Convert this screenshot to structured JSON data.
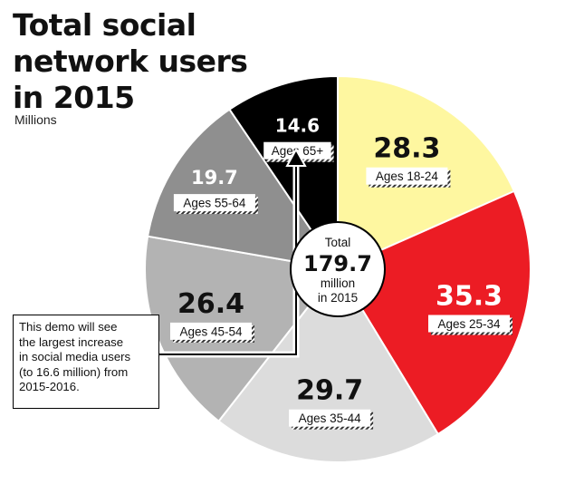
{
  "title_lines": [
    "Total social",
    "network users",
    "in 2015"
  ],
  "unit": "Millions",
  "center": {
    "label_top": "Total",
    "value": "179.7",
    "label_bottom_1": "million",
    "label_bottom_2": "in 2015"
  },
  "callout": {
    "lines": [
      "This demo will see",
      "the largest increase",
      "in social media users",
      "(to 16.6 million) from",
      "2015-2016."
    ]
  },
  "chart_data": {
    "type": "pie",
    "title": "Total social network users in 2015",
    "unit": "Millions",
    "total": 179.7,
    "slices": [
      {
        "label": "Ages 18-24",
        "value": 28.3,
        "value_text": "28.3",
        "color": "#fef7a0",
        "value_color": "#111111"
      },
      {
        "label": "Ages 25-34",
        "value": 35.3,
        "value_text": "35.3",
        "color": "#ec1c24",
        "value_color": "#ffffff"
      },
      {
        "label": "Ages 35-44",
        "value": 29.7,
        "value_text": "29.7",
        "color": "#dcdcdc",
        "value_color": "#111111"
      },
      {
        "label": "Ages 45-54",
        "value": 26.4,
        "value_text": "26.4",
        "color": "#b3b3b3",
        "value_color": "#111111"
      },
      {
        "label": "Ages 55-64",
        "value": 19.7,
        "value_text": "19.7",
        "color": "#8f8f8f",
        "value_color": "#ffffff"
      },
      {
        "label": "Ages 65+",
        "value": 14.6,
        "value_text": "14.6",
        "color": "#000000",
        "value_color": "#ffffff"
      }
    ]
  }
}
